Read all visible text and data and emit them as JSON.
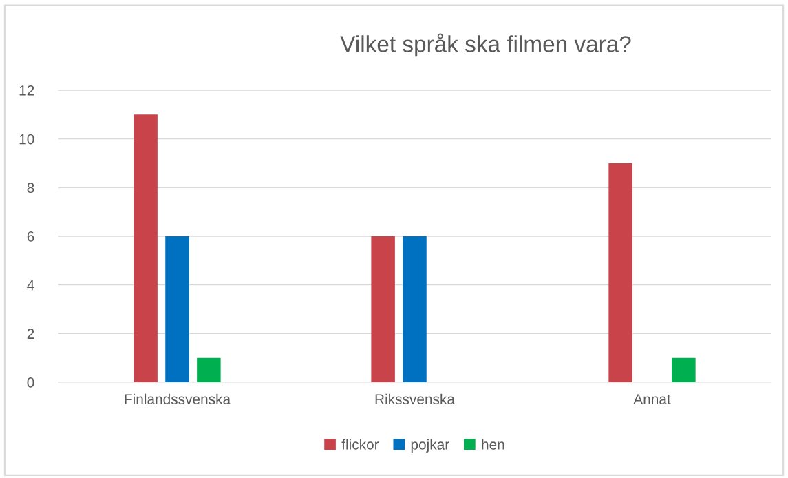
{
  "chart_data": {
    "type": "bar",
    "title": "Vilket språk ska filmen vara?",
    "categories": [
      "Finlandssvenska",
      "Rikssvenska",
      "Annat"
    ],
    "series": [
      {
        "name": "flickor",
        "color": "#c9434a",
        "values": [
          11,
          6,
          9
        ]
      },
      {
        "name": "pojkar",
        "color": "#0070c0",
        "values": [
          6,
          6,
          0
        ]
      },
      {
        "name": "hen",
        "color": "#00b050",
        "values": [
          1,
          0,
          1
        ]
      }
    ],
    "ylim": [
      0,
      12
    ],
    "yticks": [
      0,
      2,
      4,
      6,
      8,
      10,
      12
    ],
    "grid": "y",
    "legend": "bottom"
  }
}
